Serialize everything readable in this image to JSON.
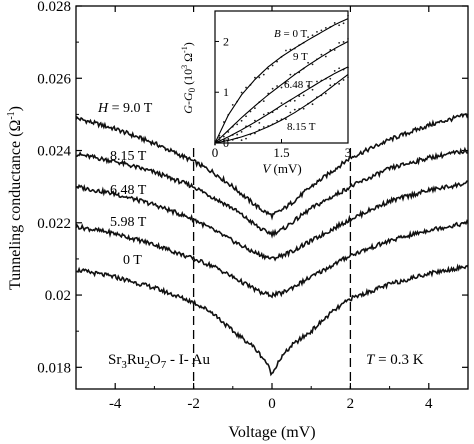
{
  "chart_data": [
    {
      "type": "line",
      "xlabel": "Voltage (mV)",
      "ylabel": "Tunneling conductance (Ω⁻¹)",
      "xlim": [
        -5,
        5
      ],
      "ylim": [
        0.0174,
        0.028
      ],
      "x_ticks": [
        -4,
        -2,
        0,
        2,
        4
      ],
      "x_tick_labels": [
        "-4",
        "-2",
        "0",
        "2",
        "4"
      ],
      "y_ticks": [
        0.018,
        0.02,
        0.022,
        0.024,
        0.026,
        0.028
      ],
      "y_tick_labels": [
        "0.018",
        "0.02",
        "0.022",
        "0.024",
        "0.026",
        "0.028"
      ],
      "grid": false,
      "vlines_dashed": [
        -2,
        2
      ],
      "annotations": {
        "sample": "Sr3Ru2O7 - I - Au",
        "temperature": "T = 0.3 K"
      },
      "series": [
        {
          "name": "H = 9.0 T",
          "x": [
            -5,
            -4,
            -3,
            -2,
            -1.5,
            -1,
            -0.5,
            -0.25,
            0,
            0.25,
            0.5,
            1,
            1.5,
            2,
            3,
            4,
            5
          ],
          "y": [
            0.0249,
            0.0246,
            0.0242,
            0.0237,
            0.0234,
            0.023,
            0.02255,
            0.02235,
            0.0222,
            0.02235,
            0.02255,
            0.023,
            0.0234,
            0.0238,
            0.0243,
            0.0247,
            0.025
          ]
        },
        {
          "name": "8.15 T",
          "x": [
            -5,
            -4,
            -3,
            -2,
            -1.5,
            -1,
            -0.5,
            -0.25,
            0,
            0.25,
            0.5,
            1,
            1.5,
            2,
            3,
            4,
            5
          ],
          "y": [
            0.0239,
            0.0237,
            0.0234,
            0.023,
            0.0227,
            0.0224,
            0.022,
            0.0218,
            0.0217,
            0.0218,
            0.022,
            0.0224,
            0.0227,
            0.023,
            0.0235,
            0.0238,
            0.024
          ]
        },
        {
          "name": "6.48 T",
          "x": [
            -5,
            -4,
            -3,
            -2,
            -1.5,
            -1,
            -0.5,
            -0.25,
            0,
            0.25,
            0.5,
            1,
            1.5,
            2,
            3,
            4,
            5
          ],
          "y": [
            0.023,
            0.0228,
            0.0225,
            0.0221,
            0.0218,
            0.0215,
            0.0212,
            0.0211,
            0.021,
            0.0211,
            0.0212,
            0.0215,
            0.0218,
            0.0221,
            0.0226,
            0.0229,
            0.0231
          ]
        },
        {
          "name": "5.98 T",
          "x": [
            -5,
            -4,
            -3,
            -2,
            -1.5,
            -1,
            -0.5,
            -0.25,
            0,
            0.25,
            0.5,
            1,
            1.5,
            2,
            3,
            4,
            5
          ],
          "y": [
            0.0219,
            0.0217,
            0.0214,
            0.021,
            0.0208,
            0.0205,
            0.0202,
            0.02005,
            0.02,
            0.02005,
            0.0202,
            0.0205,
            0.0208,
            0.0211,
            0.0215,
            0.0218,
            0.022
          ]
        },
        {
          "name": "0 T",
          "x": [
            -5,
            -4,
            -3,
            -2,
            -1.5,
            -1,
            -0.5,
            -0.3,
            -0.15,
            0,
            0.15,
            0.3,
            0.5,
            1,
            1.5,
            2,
            3,
            4,
            5
          ],
          "y": [
            0.0207,
            0.0205,
            0.0202,
            0.0198,
            0.0195,
            0.019,
            0.0186,
            0.01835,
            0.01815,
            0.0178,
            0.01815,
            0.01835,
            0.0186,
            0.019,
            0.0195,
            0.0199,
            0.0203,
            0.0206,
            0.0208
          ]
        }
      ]
    },
    {
      "type": "line",
      "inset": true,
      "xlabel": "V (mV)",
      "ylabel": "G-G0 (10³ Ω⁻¹)",
      "xlim": [
        0,
        3
      ],
      "ylim": [
        0,
        2.6
      ],
      "x_ticks": [
        0,
        1.5,
        3
      ],
      "x_tick_labels": [
        "0",
        "1.5",
        "3"
      ],
      "y_ticks": [
        0,
        1,
        2
      ],
      "y_tick_labels": [
        "0",
        "1",
        "2"
      ],
      "series": [
        {
          "name": "B = 0 T",
          "x": [
            0,
            0.3,
            0.6,
            0.9,
            1.2,
            1.5,
            1.8,
            2.1,
            2.4,
            2.7,
            3.0
          ],
          "y": [
            0,
            0.55,
            0.95,
            1.25,
            1.5,
            1.7,
            1.87,
            2.03,
            2.18,
            2.33,
            2.45
          ]
        },
        {
          "name": "9 T",
          "x": [
            0,
            0.3,
            0.6,
            0.9,
            1.2,
            1.5,
            1.8,
            2.1,
            2.4,
            2.7,
            3.0
          ],
          "y": [
            0,
            0.25,
            0.5,
            0.73,
            0.95,
            1.15,
            1.35,
            1.53,
            1.7,
            1.86,
            2.0
          ]
        },
        {
          "name": "6.48 T",
          "x": [
            0,
            0.3,
            0.6,
            0.9,
            1.2,
            1.5,
            1.8,
            2.1,
            2.4,
            2.7,
            3.0
          ],
          "y": [
            0,
            0.12,
            0.26,
            0.41,
            0.57,
            0.74,
            0.9,
            1.06,
            1.22,
            1.37,
            1.5
          ]
        },
        {
          "name": "8.15 T",
          "x": [
            0,
            0.3,
            0.6,
            0.9,
            1.2,
            1.5,
            1.8,
            2.1,
            2.4,
            2.7,
            3.0
          ],
          "y": [
            0,
            0.05,
            0.12,
            0.21,
            0.32,
            0.45,
            0.6,
            0.77,
            0.95,
            1.15,
            1.35
          ]
        }
      ]
    }
  ],
  "labels": {
    "ylabel_main": "Tunneling conductance (Ω",
    "ylabel_main_sup": "-1",
    "ylabel_main_close": ")",
    "xlabel_main": "Voltage (mV)",
    "temp_T": "T",
    "temp_rest": " = 0.3 K",
    "sample": {
      "sr": "Sr",
      "s3": "3",
      "ru": "Ru",
      "s2": "2",
      "o": "O",
      "s7": "7",
      "rest": " - I- Au"
    },
    "curve_labels": [
      {
        "italic": "H",
        "rest": " = 9.0 T"
      },
      {
        "italic": "",
        "rest": "8.15 T"
      },
      {
        "italic": "",
        "rest": "6.48 T"
      },
      {
        "italic": "",
        "rest": "5.98 T"
      },
      {
        "italic": "",
        "rest": "0 T"
      }
    ],
    "inset": {
      "b_label_italic": "B",
      "b_label_rest": " = 0 T",
      "label_9": "9 T",
      "label_648": "6.48 T",
      "label_815": "8.15 T",
      "xlabel_italic": "V",
      "xlabel_rest": " (mV)",
      "ylabel_g": "G-G",
      "ylabel_sub": "0",
      "ylabel_open": " (10",
      "ylabel_sup3": "3",
      "ylabel_omega": " Ω",
      "ylabel_supm1": "-1",
      "ylabel_close": ")"
    }
  }
}
